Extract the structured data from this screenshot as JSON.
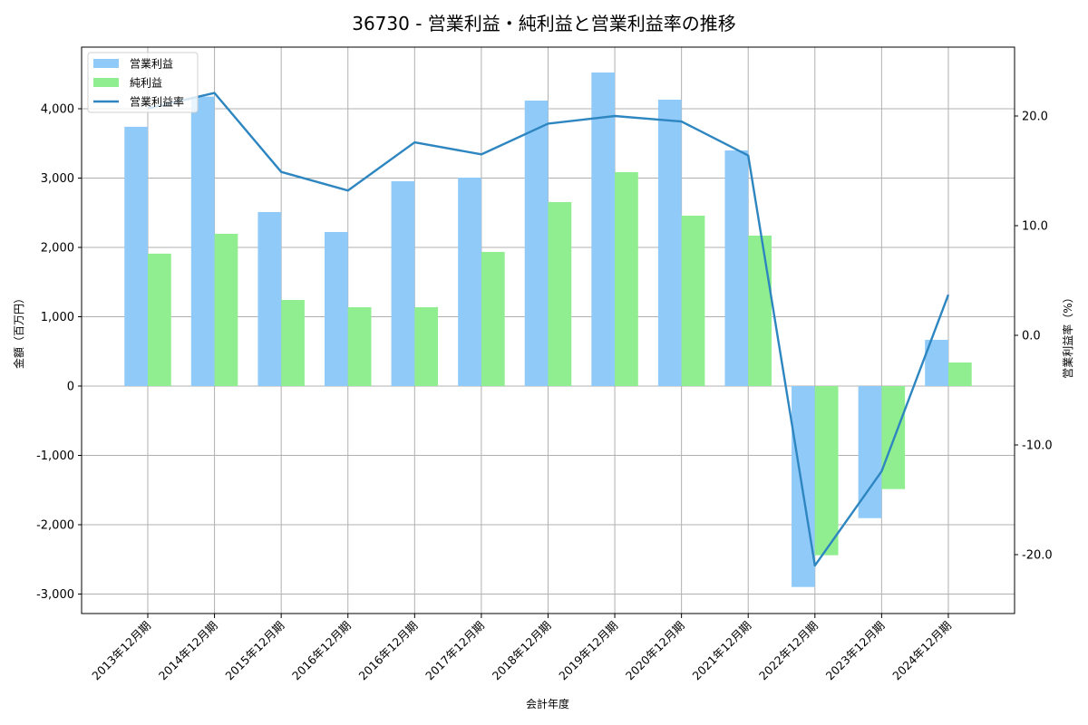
{
  "colors": {
    "operating_profit": "#90CAF9",
    "net_profit": "#90EE90",
    "margin_line": "#2E86C1",
    "grid": "#b0b0b0",
    "axis": "#000000"
  },
  "chart_data": {
    "type": "bar",
    "title": "36730 - 営業利益・純利益と営業利益率の推移",
    "xlabel": "会計年度",
    "ylabel": "金額（百万円）",
    "y2label": "営業利益率（%）",
    "ylim": [
      -3250,
      4850
    ],
    "y2lim": [
      -25.0,
      26.0
    ],
    "yticks": [
      -3000,
      -2000,
      -1000,
      0,
      1000,
      2000,
      3000,
      4000
    ],
    "ytick_labels": [
      "-3,000",
      "-2,000",
      "-1,000",
      "0",
      "1,000",
      "2,000",
      "3,000",
      "4,000"
    ],
    "y2ticks": [
      -20.0,
      -10.0,
      0.0,
      10.0,
      20.0
    ],
    "y2tick_labels": [
      "-20.0",
      "-10.0",
      "0.0",
      "10.0",
      "20.0"
    ],
    "grid": true,
    "legend_position": "upper left",
    "categories": [
      "2013年12月期",
      "2014年12月期",
      "2015年12月期",
      "2016年12月期",
      "2016年12月期",
      "2017年12月期",
      "2018年12月期",
      "2019年12月期",
      "2020年12月期",
      "2021年12月期",
      "2022年12月期",
      "2023年12月期",
      "2024年12月期"
    ],
    "series": [
      {
        "name": "営業利益",
        "type": "bar",
        "axis": "left",
        "values": [
          3740,
          4175,
          2510,
          2222,
          2954,
          3007,
          4118,
          4523,
          4131,
          3399,
          -2898,
          -1905,
          667
        ]
      },
      {
        "name": "純利益",
        "type": "bar",
        "axis": "left",
        "values": [
          1910,
          2196,
          1242,
          1137,
          1137,
          1935,
          2654,
          3085,
          2458,
          2170,
          -2440,
          -1486,
          340
        ]
      },
      {
        "name": "営業利益率",
        "type": "line",
        "axis": "right",
        "values": [
          20.7,
          22.1,
          14.9,
          13.2,
          17.6,
          16.5,
          19.3,
          20.0,
          19.5,
          16.4,
          -21.0,
          -12.4,
          3.7
        ]
      }
    ]
  }
}
